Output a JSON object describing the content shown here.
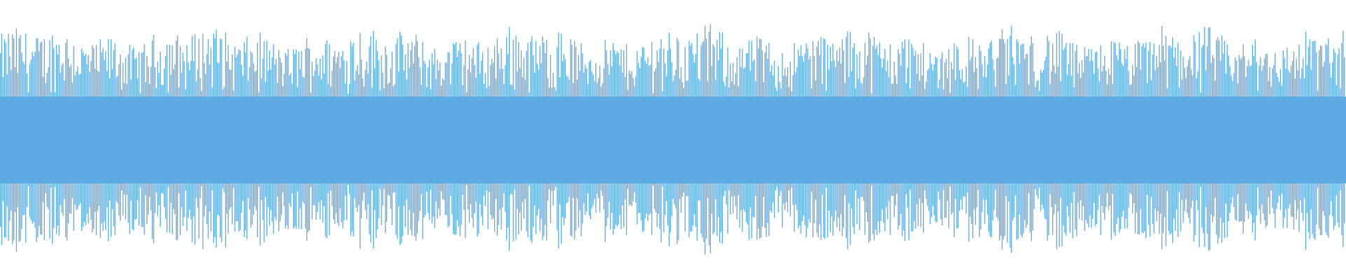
{
  "waveform": {
    "color": "#5dabe2",
    "background": "#ffffff",
    "style": "mirrored bars",
    "peak_level": 1.0
  }
}
